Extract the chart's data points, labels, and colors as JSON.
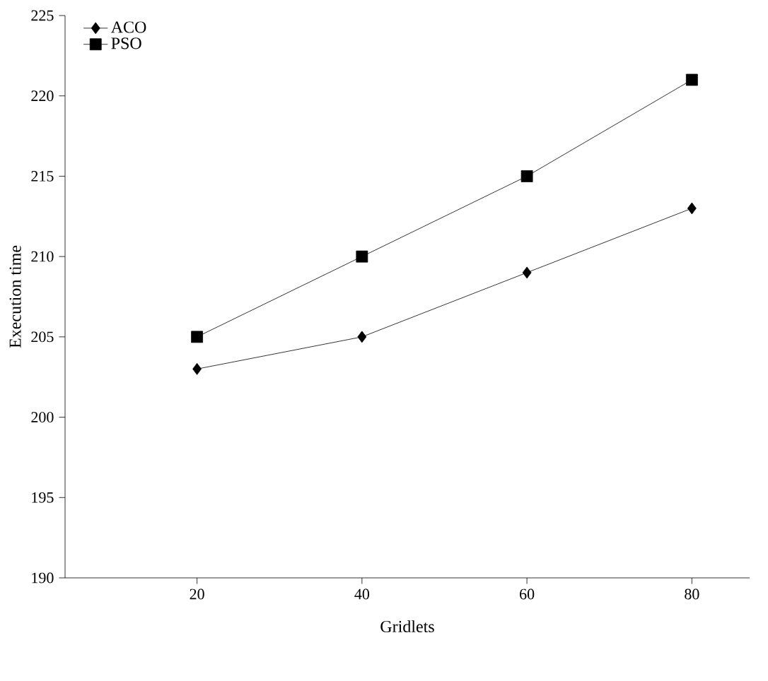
{
  "chart_data": {
    "type": "line",
    "xlabel": "Gridlets",
    "ylabel": "Execution time",
    "x": [
      20,
      40,
      60,
      80
    ],
    "series": [
      {
        "name": "ACO",
        "color": "#000000",
        "marker": "diamond",
        "values": [
          203,
          205,
          209,
          213
        ]
      },
      {
        "name": "PSO",
        "color": "#000000",
        "marker": "square",
        "values": [
          205,
          210,
          215,
          221
        ]
      }
    ],
    "xlim": [
      4,
      87
    ],
    "ylim": [
      190,
      225
    ],
    "xticks": [
      20,
      40,
      60,
      80
    ],
    "yticks": [
      190,
      195,
      200,
      205,
      210,
      215,
      220,
      225
    ],
    "legend": "top left",
    "grid": false,
    "line_style": "solid"
  }
}
